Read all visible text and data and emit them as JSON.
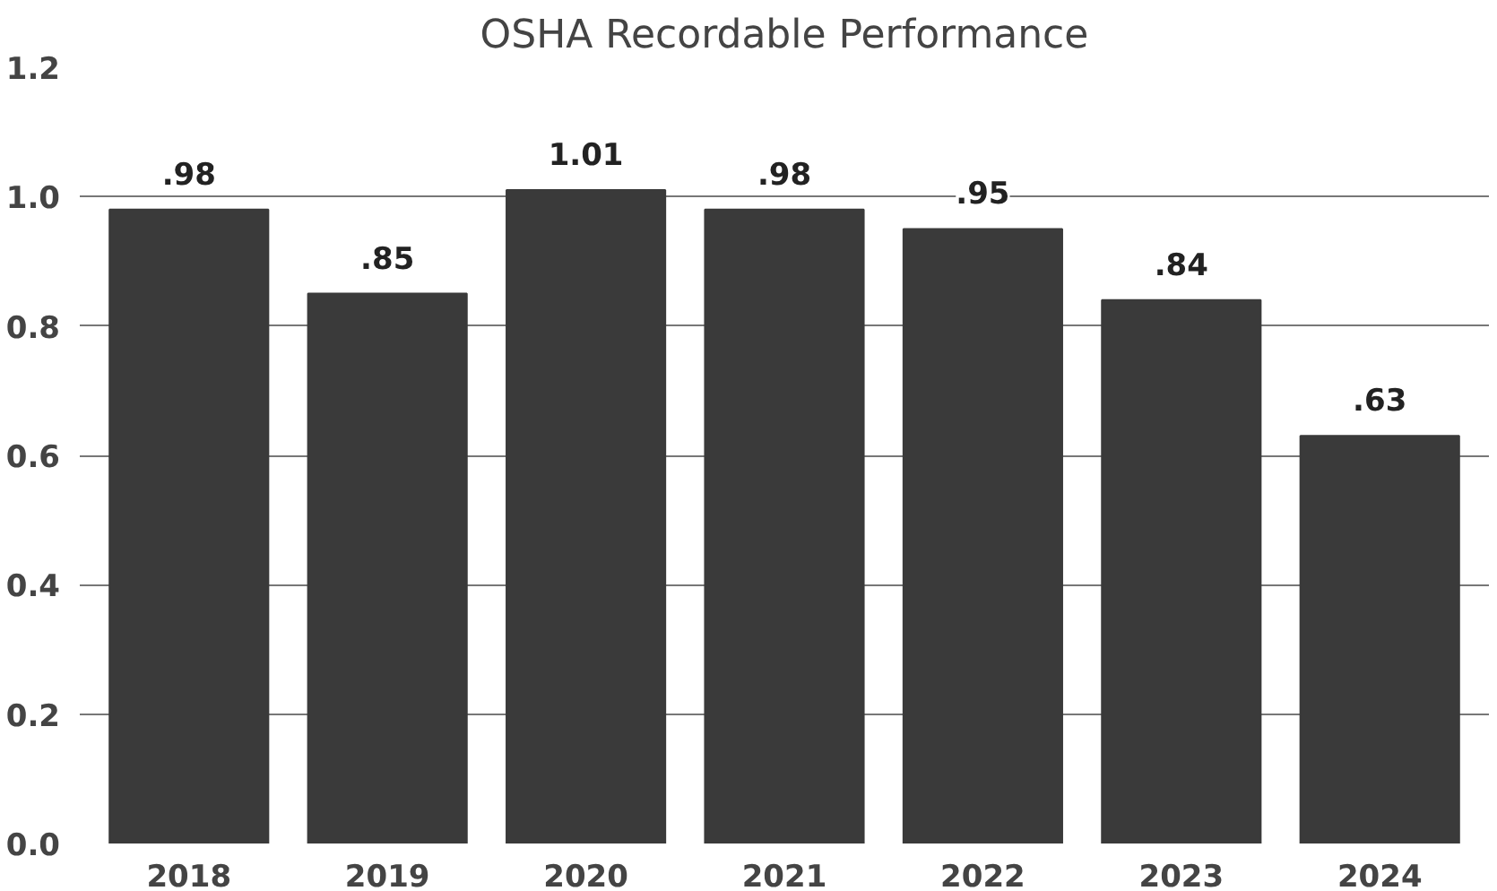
{
  "chart_data": {
    "type": "bar",
    "title": "OSHA Recordable Performance",
    "categories": [
      "2018",
      "2019",
      "2020",
      "2021",
      "2022",
      "2023",
      "2024"
    ],
    "values": [
      0.98,
      0.85,
      1.01,
      0.98,
      0.95,
      0.84,
      0.63
    ],
    "value_labels": [
      ".98",
      ".85",
      "1.01",
      ".98",
      ".95",
      ".84",
      ".63"
    ],
    "color": "#3a3a3a",
    "ylim": [
      0,
      1.2
    ],
    "yticks": [
      {
        "value": 0,
        "label": "0.0"
      },
      0.2,
      0.4,
      0.6,
      0.8,
      {
        "value": 1,
        "label": "1.0"
      },
      1.2
    ],
    "grid": "y"
  }
}
